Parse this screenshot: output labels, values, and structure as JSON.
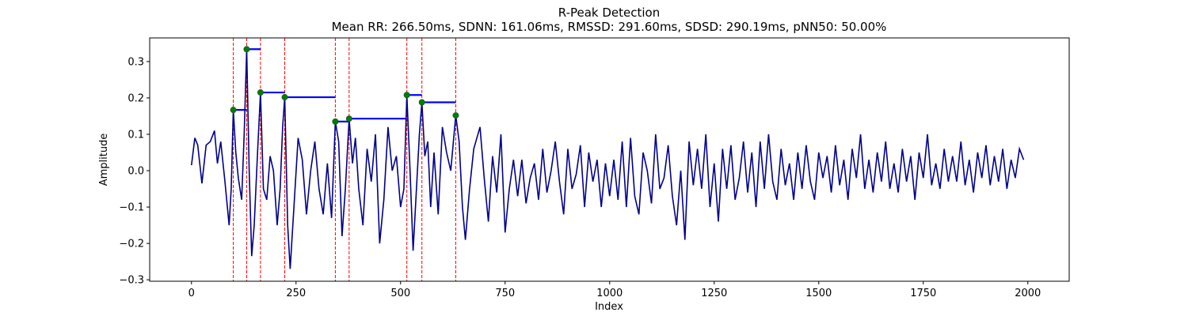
{
  "chart_data": {
    "type": "line",
    "title": "R-Peak Detection",
    "subtitle": "Mean RR: 266.50ms, SDNN: 161.06ms, RMSSD: 291.60ms, SDSD: 290.19ms, pNN50: 50.00%",
    "x_label": "Index",
    "y_label": "Amplitude",
    "color": "#00008b",
    "x": [
      0,
      8,
      15,
      25,
      35,
      45,
      55,
      62,
      70,
      80,
      90,
      95,
      100,
      106,
      112,
      120,
      126,
      132,
      138,
      144,
      150,
      158,
      165,
      172,
      180,
      188,
      196,
      205,
      212,
      218,
      223,
      230,
      236,
      245,
      255,
      265,
      275,
      285,
      295,
      305,
      315,
      325,
      335,
      344,
      352,
      360,
      368,
      377,
      385,
      392,
      400,
      410,
      420,
      430,
      440,
      450,
      460,
      470,
      480,
      490,
      500,
      508,
      515,
      522,
      530,
      538,
      545,
      551,
      558,
      565,
      572,
      580,
      590,
      600,
      610,
      620,
      632,
      640,
      648,
      655,
      665,
      675,
      690,
      700,
      710,
      720,
      730,
      740,
      750,
      760,
      770,
      780,
      790,
      800,
      810,
      820,
      830,
      840,
      850,
      860,
      870,
      880,
      890,
      900,
      910,
      920,
      930,
      940,
      950,
      960,
      970,
      980,
      990,
      1000,
      1010,
      1020,
      1030,
      1040,
      1050,
      1060,
      1070,
      1080,
      1090,
      1100,
      1110,
      1120,
      1130,
      1140,
      1150,
      1160,
      1170,
      1180,
      1190,
      1200,
      1210,
      1220,
      1230,
      1240,
      1250,
      1260,
      1270,
      1280,
      1290,
      1300,
      1310,
      1320,
      1330,
      1340,
      1350,
      1360,
      1370,
      1380,
      1390,
      1400,
      1410,
      1420,
      1430,
      1440,
      1450,
      1460,
      1470,
      1480,
      1490,
      1500,
      1510,
      1520,
      1530,
      1540,
      1550,
      1560,
      1570,
      1580,
      1590,
      1600,
      1610,
      1620,
      1630,
      1640,
      1650,
      1660,
      1670,
      1680,
      1690,
      1700,
      1710,
      1720,
      1730,
      1740,
      1750,
      1760,
      1770,
      1780,
      1790,
      1800,
      1810,
      1820,
      1830,
      1840,
      1850,
      1860,
      1870,
      1880,
      1890,
      1900,
      1910,
      1920,
      1930,
      1940,
      1950,
      1960,
      1970,
      1980,
      1990
    ],
    "values": [
      0.015,
      0.09,
      0.07,
      -0.035,
      0.07,
      0.08,
      0.11,
      0.02,
      0.08,
      -0.03,
      -0.15,
      -0.05,
      0.167,
      0.05,
      -0.02,
      -0.08,
      0.1,
      0.334,
      0.0,
      -0.235,
      -0.15,
      0.05,
      0.215,
      -0.05,
      -0.08,
      0.04,
      0.0,
      -0.15,
      -0.05,
      0.12,
      0.202,
      -0.15,
      -0.27,
      -0.1,
      0.09,
      0.03,
      -0.12,
      0.0,
      0.08,
      -0.05,
      -0.12,
      0.02,
      -0.13,
      0.135,
      0.08,
      -0.18,
      -0.05,
      0.143,
      0.02,
      0.09,
      -0.05,
      -0.15,
      0.06,
      -0.03,
      0.1,
      -0.2,
      -0.08,
      0.12,
      0.0,
      0.04,
      -0.1,
      -0.05,
      0.208,
      0.02,
      -0.22,
      -0.05,
      0.1,
      0.188,
      0.04,
      0.08,
      -0.1,
      0.05,
      -0.12,
      0.12,
      0.05,
      0.0,
      0.152,
      0.08,
      -0.1,
      -0.19,
      -0.05,
      0.06,
      0.12,
      -0.02,
      -0.14,
      0.04,
      -0.06,
      0.1,
      -0.17,
      -0.05,
      0.03,
      -0.07,
      0.03,
      -0.09,
      -0.02,
      0.02,
      -0.08,
      0.06,
      -0.06,
      0.0,
      0.08,
      -0.03,
      -0.12,
      0.06,
      -0.05,
      -0.01,
      0.07,
      -0.1,
      0.05,
      -0.03,
      0.03,
      -0.1,
      0.02,
      -0.07,
      0.03,
      -0.08,
      0.08,
      -0.1,
      0.09,
      -0.07,
      -0.12,
      0.05,
      0.0,
      -0.09,
      0.1,
      -0.05,
      -0.02,
      0.07,
      -0.07,
      -0.15,
      0.0,
      -0.19,
      0.08,
      -0.04,
      0.06,
      -0.05,
      0.1,
      -0.1,
      0.02,
      -0.14,
      0.06,
      -0.05,
      0.07,
      -0.08,
      -0.02,
      0.08,
      -0.06,
      0.05,
      -0.1,
      0.08,
      -0.05,
      0.1,
      -0.03,
      -0.08,
      0.06,
      -0.04,
      0.02,
      -0.08,
      0.05,
      -0.05,
      0.07,
      -0.03,
      -0.08,
      0.05,
      -0.02,
      0.04,
      -0.06,
      0.07,
      -0.04,
      0.03,
      -0.08,
      0.06,
      -0.02,
      0.1,
      -0.05,
      0.03,
      -0.06,
      0.05,
      -0.03,
      0.08,
      -0.05,
      0.02,
      -0.06,
      0.06,
      -0.03,
      0.04,
      -0.08,
      0.05,
      -0.02,
      0.1,
      -0.04,
      0.02,
      -0.05,
      0.06,
      -0.03,
      0.04,
      -0.03,
      0.08,
      -0.04,
      0.03,
      -0.06,
      0.05,
      -0.02,
      0.07,
      -0.04,
      0.04,
      -0.03,
      0.06,
      -0.05,
      0.03,
      -0.02,
      0.06,
      0.03
    ],
    "peaks": {
      "x": [
        100,
        132,
        165,
        223,
        344,
        377,
        515,
        551,
        632
      ],
      "values": [
        0.167,
        0.334,
        0.215,
        0.202,
        0.135,
        0.143,
        0.208,
        0.188,
        0.152
      ],
      "color": "green",
      "line_color": "red",
      "interval_color": "blue"
    },
    "xlim": [
      -99.95,
      2098.95
    ],
    "ylim": [
      -0.304,
      0.365
    ],
    "xticks": [
      0,
      250,
      500,
      750,
      1000,
      1250,
      1500,
      1750,
      2000
    ],
    "yticks": [
      {
        "value": -0.3,
        "label": "−0.3"
      },
      {
        "value": -0.2,
        "label": "−0.2"
      },
      {
        "value": -0.1,
        "label": "−0.1"
      },
      {
        "value": 0,
        "label": "0.0"
      },
      0.1,
      0.2,
      0.3
    ]
  }
}
